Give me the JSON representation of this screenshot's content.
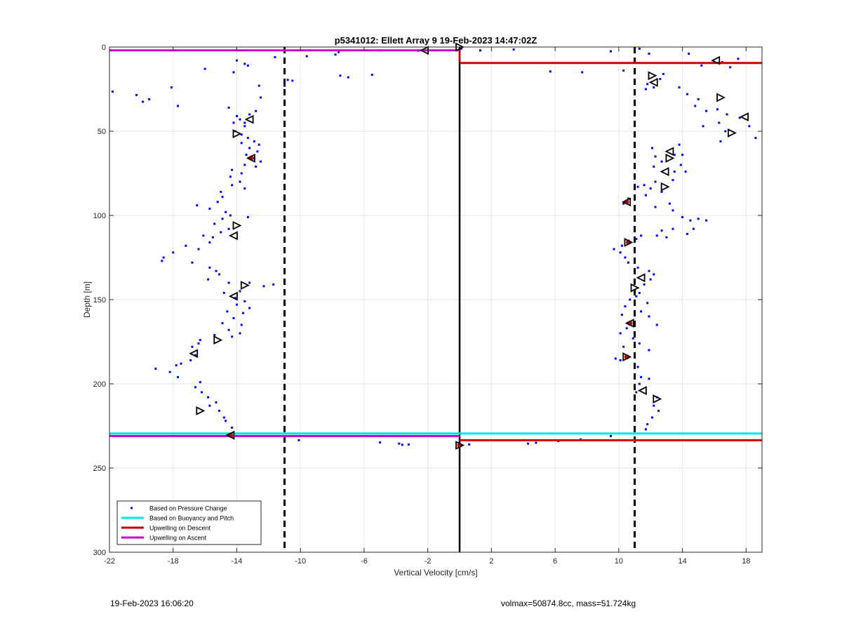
{
  "figure": {
    "footer_left": "19-Feb-2023 16:06:20",
    "footer_right": "volmax=50874.8cc, mass=51.724kg"
  },
  "chart_data": {
    "type": "scatter",
    "title": "p5341012: Ellett Array 9 19-Feb-2023 14:47:02Z",
    "xlabel": "Vertical Velocity [cm/s]",
    "ylabel": "Depth [m]",
    "xlim": [
      -22,
      19
    ],
    "ylim": [
      0,
      300
    ],
    "y_reversed": true,
    "grid": true,
    "xticks": [
      -22,
      -18,
      -14,
      -10,
      -6,
      -2,
      2,
      6,
      10,
      14,
      18
    ],
    "yticks": [
      0,
      50,
      100,
      150,
      200,
      250,
      300
    ],
    "legend": {
      "placement": "bottom-left",
      "entries": [
        {
          "label": "Based on Pressure Change",
          "color": "#0000ff",
          "marker": "dot"
        },
        {
          "label": "Based on Buoyancy and Pitch",
          "color": "#00e5e5",
          "marker": "line"
        },
        {
          "label": "Upwelling on Descent",
          "color": "#cc0000",
          "marker": "line"
        },
        {
          "label": "Upwelling on Ascent",
          "color": "#cc00cc",
          "marker": "line"
        }
      ]
    },
    "threshold_lines": [
      -11,
      11
    ],
    "zero_line": 0,
    "upwelling_ascent": [
      {
        "x": [
          -22,
          0
        ],
        "y": [
          2,
          2
        ]
      },
      {
        "x": [
          -22,
          0
        ],
        "y": [
          231,
          231
        ]
      }
    ],
    "upwelling_descent": [
      {
        "x": [
          0,
          19
        ],
        "y": [
          9.5,
          9.5
        ]
      },
      {
        "x": [
          0,
          19
        ],
        "y": [
          233.5,
          233.5
        ]
      }
    ],
    "buoyancy_pitch": [
      {
        "x": [
          -22,
          19
        ],
        "y": [
          229.5,
          229.5
        ]
      }
    ],
    "pressure_points": [
      [
        -21.8,
        26.5
      ],
      [
        -20.3,
        28.5
      ],
      [
        -19.9,
        32.5
      ],
      [
        -19.5,
        31
      ],
      [
        -18.1,
        24
      ],
      [
        -17.7,
        35
      ],
      [
        -16,
        13
      ],
      [
        -14.2,
        15
      ],
      [
        -14,
        8
      ],
      [
        -13.5,
        10
      ],
      [
        -13.3,
        11
      ],
      [
        -12.6,
        23
      ],
      [
        -11.6,
        6
      ],
      [
        -11,
        23
      ],
      [
        -10.8,
        19.5
      ],
      [
        -10.5,
        20
      ],
      [
        -9.6,
        5.5
      ],
      [
        -7.8,
        4.5
      ],
      [
        -7.6,
        3
      ],
      [
        -7.5,
        17
      ],
      [
        -5.5,
        16.5
      ],
      [
        -5,
        2
      ],
      [
        -2.6,
        2.2
      ],
      [
        0.1,
        1
      ],
      [
        1.3,
        2
      ],
      [
        3.4,
        1.5
      ],
      [
        -7,
        18
      ],
      [
        -12.5,
        30
      ],
      [
        -14.5,
        36
      ],
      [
        -14,
        41
      ],
      [
        -13.8,
        43
      ],
      [
        -13.5,
        45
      ],
      [
        -14.2,
        45
      ],
      [
        -13.2,
        40
      ],
      [
        -12.8,
        38
      ],
      [
        -13.5,
        47
      ],
      [
        -14.1,
        50
      ],
      [
        -13.7,
        52
      ],
      [
        -13.3,
        54
      ],
      [
        -12.9,
        56
      ],
      [
        -13.7,
        57
      ],
      [
        -12.6,
        58
      ],
      [
        -13.2,
        60
      ],
      [
        -12.7,
        62
      ],
      [
        -13.4,
        64
      ],
      [
        -12.9,
        66
      ],
      [
        -12.5,
        68
      ],
      [
        -13.5,
        70
      ],
      [
        -12.8,
        71
      ],
      [
        -14.3,
        73
      ],
      [
        -13.7,
        75
      ],
      [
        -14.4,
        77
      ],
      [
        -13.8,
        80
      ],
      [
        -14.3,
        82
      ],
      [
        -13.5,
        84
      ],
      [
        -15,
        86
      ],
      [
        -14.9,
        89
      ],
      [
        -15.2,
        92
      ],
      [
        -16.5,
        94
      ],
      [
        -15.7,
        96
      ],
      [
        -14.7,
        98
      ],
      [
        -14.4,
        100
      ],
      [
        -14.9,
        102
      ],
      [
        -13.3,
        101
      ],
      [
        -15.4,
        105
      ],
      [
        -14.5,
        108
      ],
      [
        -15,
        110
      ],
      [
        -15.5,
        113
      ],
      [
        -16.1,
        112
      ],
      [
        -15.7,
        116
      ],
      [
        -16.4,
        120
      ],
      [
        -17.2,
        118
      ],
      [
        -18,
        122
      ],
      [
        -18.6,
        125
      ],
      [
        -18.7,
        127
      ],
      [
        -16.8,
        128
      ],
      [
        -15.7,
        131
      ],
      [
        -15.3,
        133
      ],
      [
        -15.1,
        135
      ],
      [
        -15.8,
        138
      ],
      [
        -14.5,
        140
      ],
      [
        -13.2,
        140
      ],
      [
        -11.7,
        141
      ],
      [
        -12.3,
        142
      ],
      [
        -13.8,
        145
      ],
      [
        -14.8,
        146
      ],
      [
        -14.1,
        149
      ],
      [
        -13.5,
        151
      ],
      [
        -14,
        153
      ],
      [
        -13.2,
        155
      ],
      [
        -14.6,
        157
      ],
      [
        -13.6,
        158
      ],
      [
        -14.2,
        161
      ],
      [
        -14.9,
        164
      ],
      [
        -13.7,
        165
      ],
      [
        -14.5,
        168
      ],
      [
        -13.8,
        170
      ],
      [
        -14.3,
        172
      ],
      [
        -15.4,
        171
      ],
      [
        -16.3,
        174
      ],
      [
        -16.4,
        176
      ],
      [
        -16.8,
        178
      ],
      [
        -16.6,
        183
      ],
      [
        -16.9,
        186
      ],
      [
        -17.5,
        188
      ],
      [
        -17.8,
        189
      ],
      [
        -19.1,
        191
      ],
      [
        -18.2,
        193
      ],
      [
        -17.7,
        196
      ],
      [
        -16.3,
        199
      ],
      [
        -16.6,
        202
      ],
      [
        -16.2,
        205
      ],
      [
        -15.8,
        208
      ],
      [
        -15.3,
        211
      ],
      [
        -15.7,
        213
      ],
      [
        -15.1,
        216
      ],
      [
        -14.8,
        220
      ],
      [
        -14.7,
        222
      ],
      [
        -14.3,
        226
      ],
      [
        -10.1,
        233.5
      ],
      [
        -5,
        234.8
      ],
      [
        -3.8,
        235.5
      ],
      [
        -3.2,
        236
      ],
      [
        -3.6,
        236.2
      ],
      [
        0.6,
        236
      ],
      [
        4.3,
        235.5
      ],
      [
        4.8,
        235
      ],
      [
        6.2,
        234
      ],
      [
        7.6,
        233
      ],
      [
        9.5,
        231
      ],
      [
        9.5,
        2.5
      ],
      [
        10.3,
        14
      ],
      [
        11.3,
        1
      ],
      [
        11.9,
        4
      ],
      [
        12.8,
        16
      ],
      [
        12.6,
        19
      ],
      [
        14.4,
        4
      ],
      [
        15.2,
        11
      ],
      [
        16.5,
        9
      ],
      [
        17,
        12
      ],
      [
        17.5,
        7
      ],
      [
        5.7,
        14.5
      ],
      [
        7.7,
        15
      ],
      [
        11.8,
        22
      ],
      [
        11.7,
        25
      ],
      [
        12.2,
        24
      ],
      [
        13.8,
        24
      ],
      [
        14.3,
        28
      ],
      [
        15,
        31
      ],
      [
        14.8,
        35
      ],
      [
        15.5,
        38
      ],
      [
        16.2,
        37
      ],
      [
        16.3,
        45
      ],
      [
        16.8,
        40
      ],
      [
        17.6,
        42
      ],
      [
        16.7,
        50
      ],
      [
        16.4,
        56
      ],
      [
        15.3,
        47
      ],
      [
        18.6,
        54
      ],
      [
        18.2,
        47
      ],
      [
        12.1,
        60
      ],
      [
        12.3,
        65
      ],
      [
        12.7,
        68
      ],
      [
        13.5,
        64
      ],
      [
        13.8,
        58
      ],
      [
        14,
        64
      ],
      [
        12.2,
        71
      ],
      [
        13.9,
        70
      ],
      [
        13.5,
        74
      ],
      [
        14.2,
        74
      ],
      [
        13.4,
        79
      ],
      [
        12.3,
        80
      ],
      [
        11.6,
        82
      ],
      [
        11.2,
        83
      ],
      [
        12,
        84
      ],
      [
        11.7,
        88
      ],
      [
        12.7,
        86
      ],
      [
        10.6,
        90
      ],
      [
        10.3,
        93
      ],
      [
        13.2,
        93
      ],
      [
        12.3,
        95
      ],
      [
        13.4,
        97
      ],
      [
        14,
        101
      ],
      [
        15,
        102
      ],
      [
        15.5,
        103
      ],
      [
        14.5,
        103
      ],
      [
        14.7,
        108
      ],
      [
        14.3,
        111
      ],
      [
        13.4,
        108
      ],
      [
        13,
        113
      ],
      [
        12.7,
        109
      ],
      [
        12.4,
        112
      ],
      [
        11.4,
        112
      ],
      [
        11.1,
        114
      ],
      [
        10.6,
        115
      ],
      [
        10.2,
        118
      ],
      [
        9.7,
        120
      ],
      [
        10.1,
        122
      ],
      [
        10.4,
        125
      ],
      [
        10.6,
        128
      ],
      [
        11.2,
        131
      ],
      [
        11.9,
        133
      ],
      [
        12.2,
        135
      ],
      [
        12,
        138
      ],
      [
        11.6,
        141
      ],
      [
        11.3,
        146
      ],
      [
        11.1,
        148
      ],
      [
        10.7,
        150
      ],
      [
        11.8,
        152
      ],
      [
        10.4,
        154
      ],
      [
        11.4,
        157
      ],
      [
        10.2,
        159
      ],
      [
        11.9,
        160
      ],
      [
        12.4,
        165
      ],
      [
        10.5,
        167
      ],
      [
        10.1,
        170
      ],
      [
        10.9,
        173
      ],
      [
        11.3,
        176
      ],
      [
        10.3,
        178
      ],
      [
        11.9,
        180
      ],
      [
        9.8,
        185
      ],
      [
        10.1,
        186
      ],
      [
        11.2,
        190
      ],
      [
        11.4,
        196
      ],
      [
        11.9,
        197
      ],
      [
        11.3,
        200
      ],
      [
        11.1,
        205
      ],
      [
        12.4,
        208
      ],
      [
        12.2,
        213
      ],
      [
        12.5,
        216
      ],
      [
        12.1,
        220
      ],
      [
        11.8,
        224
      ],
      [
        11.7,
        227
      ]
    ],
    "ascent_markers": [
      [
        -2.2,
        2
      ],
      [
        0,
        0
      ],
      [
        -13.2,
        43
      ],
      [
        -14,
        51.5
      ],
      [
        -13.1,
        66
      ],
      [
        -14,
        106
      ],
      [
        -14.2,
        112
      ],
      [
        -13.5,
        141.5
      ],
      [
        -14.2,
        148
      ],
      [
        -15.2,
        174
      ],
      [
        -16.7,
        182
      ],
      [
        -16.3,
        216
      ],
      [
        -14.4,
        230.5
      ],
      [
        0,
        236.5
      ],
      [
        16.1,
        8
      ],
      [
        12.1,
        17
      ],
      [
        12.2,
        21
      ],
      [
        16.4,
        30
      ],
      [
        17.9,
        41.5
      ],
      [
        17.1,
        51
      ],
      [
        13.2,
        62
      ],
      [
        13.2,
        66
      ],
      [
        12.9,
        74
      ],
      [
        12.9,
        83
      ],
      [
        10.5,
        92
      ],
      [
        10.6,
        116
      ],
      [
        11.4,
        137
      ],
      [
        11,
        143
      ],
      [
        10.7,
        164
      ],
      [
        10.5,
        184
      ],
      [
        11.5,
        204
      ],
      [
        12.4,
        209
      ]
    ],
    "pitch_markers": [
      [
        -13.1,
        66
      ],
      [
        10.5,
        92
      ],
      [
        10.6,
        116
      ],
      [
        10.7,
        164
      ],
      [
        10.5,
        184
      ],
      [
        -14.4,
        230.5
      ],
      [
        0,
        236.5
      ]
    ]
  }
}
